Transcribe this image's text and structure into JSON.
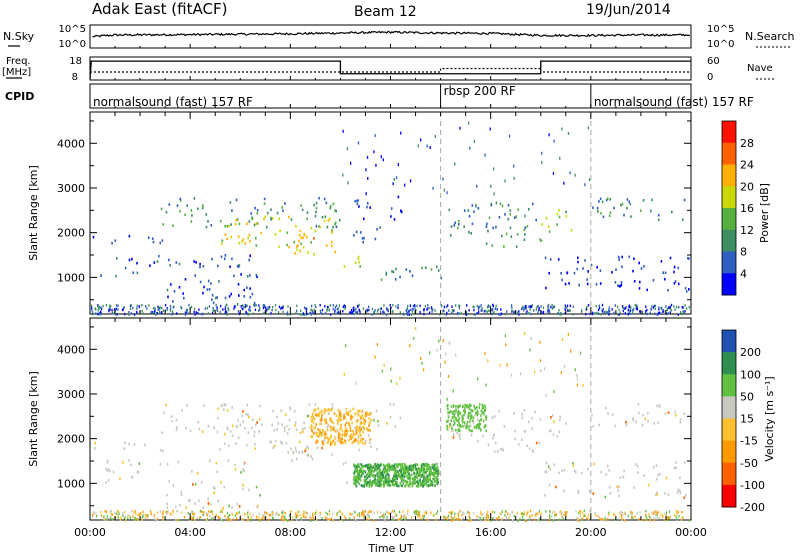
{
  "header": {
    "station": "Adak East (fitACF)",
    "beam": "Beam 12",
    "date": "19/Jun/2014"
  },
  "sky_panel": {
    "left_label": "N.Sky",
    "right_label": "N.Search",
    "left_ticks": [
      "10^5",
      "10^0"
    ],
    "right_ticks": [
      "10^5",
      "10^0"
    ]
  },
  "freq_panel": {
    "left_label_line1": "Freq.",
    "left_label_line2": "[MHz]",
    "left_ticks": [
      "18",
      "8"
    ],
    "right_label": "Nave",
    "right_ticks": [
      "60",
      "0"
    ]
  },
  "cpid_panel": {
    "label": "CPID",
    "programs": [
      {
        "name": "normalsound (fast) 157 RF",
        "start_hour": 0,
        "end_hour": 14
      },
      {
        "name": "rbsp 200 RF",
        "start_hour": 14,
        "end_hour": 20
      },
      {
        "name": "normalsound (fast) 157 RF",
        "start_hour": 20,
        "end_hour": 24
      }
    ]
  },
  "x_axis": {
    "label": "Time UT",
    "ticks": [
      "00:00",
      "04:00",
      "08:00",
      "12:00",
      "16:00",
      "20:00",
      "00:00"
    ],
    "range_hours": [
      0,
      24
    ]
  },
  "power_panel": {
    "ylabel": "Slant Range [km]",
    "yticks": [
      "1000",
      "2000",
      "3000",
      "4000"
    ],
    "colorbar_label": "Power [dB]",
    "colorbar_ticks": [
      "28",
      "24",
      "20",
      "16",
      "12",
      "8",
      "4"
    ]
  },
  "velocity_panel": {
    "ylabel": "Slant Range [km]",
    "yticks": [
      "1000",
      "2000",
      "3000",
      "4000"
    ],
    "colorbar_label": "Velocity [m s⁻¹]",
    "colorbar_ticks": [
      "200",
      "100",
      "50",
      "15",
      "-15",
      "-50",
      "-100",
      "-200"
    ]
  },
  "chart_data": [
    {
      "type": "line",
      "title": "N.Sky",
      "x": [
        0,
        0.1,
        1,
        4,
        8,
        10,
        12,
        14,
        16,
        18,
        20,
        22,
        24
      ],
      "y_log10": [
        0,
        2.6,
        3.0,
        3.1,
        3.3,
        3.5,
        3.7,
        3.5,
        3.4,
        2.9,
        2.9,
        3.0,
        3.0
      ],
      "ylim_log10": [
        0,
        5
      ]
    },
    {
      "type": "line",
      "title": "Freq. [MHz] / Nave",
      "series": [
        {
          "name": "Freq.",
          "x": [
            0,
            0.05,
            10,
            10,
            18,
            18,
            24
          ],
          "y": [
            8,
            16.5,
            16.5,
            10.5,
            10.5,
            16.5,
            16.5
          ]
        },
        {
          "name": "Nave",
          "x": [
            0,
            14,
            14,
            18,
            18,
            24
          ],
          "y": [
            20,
            20,
            30,
            30,
            20,
            20
          ]
        }
      ],
      "ylim_left": [
        8,
        18
      ],
      "ylim_right": [
        0,
        60
      ]
    },
    {
      "type": "heatmap",
      "title": "Power [dB]",
      "xlabel": "Time UT",
      "ylabel": "Slant Range [km]",
      "xlim": [
        0,
        24
      ],
      "ylim": [
        180,
        4700
      ],
      "color_scale": {
        "levels": [
          4,
          8,
          12,
          16,
          20,
          24,
          28,
          32
        ],
        "colors": [
          "#0000ff",
          "#2f5fc0",
          "#3c8f60",
          "#55b040",
          "#c8d800",
          "#ffb000",
          "#ff6000",
          "#ff1000"
        ]
      },
      "scatter_regions": [
        {
          "x": [
            0.0,
            14.0
          ],
          "y": [
            190,
            470
          ],
          "density": 0.0
        },
        {
          "x": [
            0.1,
            2.9
          ],
          "y": [
            1750,
            1950
          ],
          "power": 8,
          "spread": 3
        },
        {
          "x": [
            0.2,
            1.9
          ],
          "y": [
            1050,
            1250
          ],
          "power": 10,
          "spread": 4
        },
        {
          "x": [
            0.5,
            6.5
          ],
          "y": [
            1250,
            1550
          ],
          "power": 9,
          "spread": 4
        },
        {
          "x": [
            3.0,
            6.8
          ],
          "y": [
            400,
            1100
          ],
          "power": 9,
          "spread": 5
        },
        {
          "x": [
            2.8,
            10.0
          ],
          "y": [
            2150,
            2800
          ],
          "power": 14,
          "spread": 6
        },
        {
          "x": [
            5.0,
            9.9
          ],
          "y": [
            1700,
            2400
          ],
          "power": 22,
          "spread": 5
        },
        {
          "x": [
            8.0,
            9.8
          ],
          "y": [
            1500,
            2000
          ],
          "power": 25,
          "spread": 4
        },
        {
          "x": [
            10.0,
            10.8
          ],
          "y": [
            1000,
            1500
          ],
          "power": 23,
          "spread": 4
        },
        {
          "x": [
            10.5,
            11.6
          ],
          "y": [
            1750,
            2800
          ],
          "power": 10,
          "spread": 3
        },
        {
          "x": [
            11.8,
            12.5
          ],
          "y": [
            2300,
            2850
          ],
          "power": 8,
          "spread": 3
        },
        {
          "x": [
            11.0,
            14.0
          ],
          "y": [
            950,
            1300
          ],
          "power": 14,
          "spread": 5
        },
        {
          "x": [
            14.2,
            18.0
          ],
          "y": [
            1900,
            2700
          ],
          "power": 13,
          "spread": 5
        },
        {
          "x": [
            15.8,
            18.0
          ],
          "y": [
            1700,
            2000
          ],
          "power": 16,
          "spread": 4
        },
        {
          "x": [
            18.0,
            19.2
          ],
          "y": [
            2050,
            2600
          ],
          "power": 19,
          "spread": 5
        },
        {
          "x": [
            18.0,
            23.9
          ],
          "y": [
            1100,
            1500
          ],
          "power": 8,
          "spread": 3
        },
        {
          "x": [
            18.0,
            23.9
          ],
          "y": [
            700,
            1000
          ],
          "power": 8,
          "spread": 3
        },
        {
          "x": [
            20.0,
            23.9
          ],
          "y": [
            2300,
            2800
          ],
          "power": 13,
          "spread": 5
        }
      ]
    },
    {
      "type": "heatmap",
      "title": "Velocity [m s⁻¹]",
      "xlabel": "Time UT",
      "ylabel": "Slant Range [km]",
      "xlim": [
        0,
        24
      ],
      "ylim": [
        180,
        4700
      ],
      "color_scale": {
        "levels": [
          -200,
          -100,
          -50,
          -15,
          15,
          50,
          100,
          200
        ],
        "colors": [
          "#ff0000",
          "#ff6000",
          "#ff9900",
          "#ffc030",
          "#c8c8c0",
          "#60c040",
          "#2f8f50",
          "#2050b0"
        ]
      },
      "notes": "ground scatter grey; green positive patch near 12:00 at 1000-1500 km; orange negative near 08:00-12:00"
    }
  ]
}
